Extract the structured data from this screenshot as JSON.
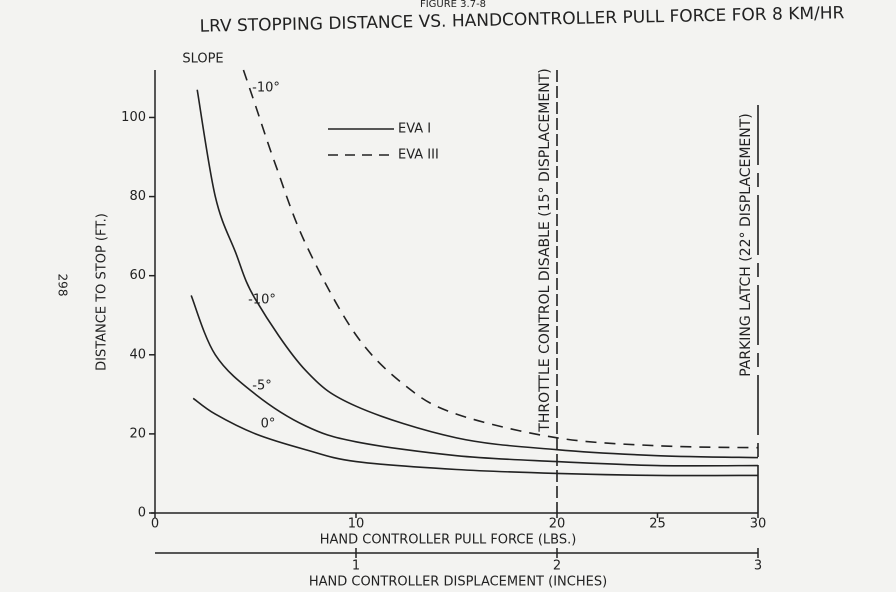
{
  "figure_label": "FIGURE 3.7-8",
  "page_number": "298",
  "chart_data": {
    "type": "line",
    "title": "LRV STOPPING DISTANCE VS. HANDCONTROLLER PULL FORCE FOR 8 KM/HR",
    "x_label": "HAND CONTROLLER PULL FORCE (LBS.)",
    "y_label": "DISTANCE TO STOP (FT.)",
    "x2_label": "HAND CONTROLLER DISPLACEMENT (INCHES)",
    "xlim": [
      0,
      30
    ],
    "xticks": [
      0,
      10,
      20,
      25,
      30
    ],
    "ylim": [
      0,
      112
    ],
    "yticks": [
      0,
      20,
      40,
      60,
      80,
      100
    ],
    "x2lim": [
      0,
      3
    ],
    "x2ticks": [
      1,
      2,
      3
    ],
    "slope_heading": "SLOPE",
    "legend": [
      {
        "label": "EVA I",
        "dashed": false
      },
      {
        "label": "EVA III",
        "dashed": true
      }
    ],
    "series": [
      {
        "label": "0°",
        "dashed": false,
        "x": [
          1.9,
          3,
          5,
          7.5,
          10,
          15,
          20,
          25,
          30
        ],
        "values": [
          29,
          25,
          20,
          16,
          13,
          11,
          10,
          9.5,
          9.5
        ]
      },
      {
        "label": "-5°",
        "dashed": false,
        "x": [
          1.8,
          3,
          5,
          7.5,
          10,
          15,
          20,
          25,
          30
        ],
        "values": [
          55,
          40,
          30,
          22,
          18,
          14.5,
          13,
          12,
          12
        ]
      },
      {
        "label": "-10°",
        "dashed": false,
        "x": [
          2.1,
          3,
          4,
          5,
          7.5,
          10,
          15,
          20,
          25,
          30
        ],
        "values": [
          107,
          80,
          66,
          54,
          36,
          27,
          19,
          16,
          14.5,
          14
        ]
      },
      {
        "label": "-10°",
        "dashed": true,
        "x": [
          4.4,
          5,
          6,
          7.5,
          10,
          12.5,
          15,
          20,
          25,
          30
        ],
        "values": [
          112,
          103,
          88,
          68,
          45,
          32,
          25,
          19,
          17,
          16.5
        ]
      }
    ],
    "annotations": [
      {
        "text": "THROTTLE CONTROL DISABLE (15° DISPLACEMENT)",
        "x": 20
      },
      {
        "text": "PARKING LATCH (22° DISPLACEMENT)",
        "x": 30
      }
    ]
  }
}
